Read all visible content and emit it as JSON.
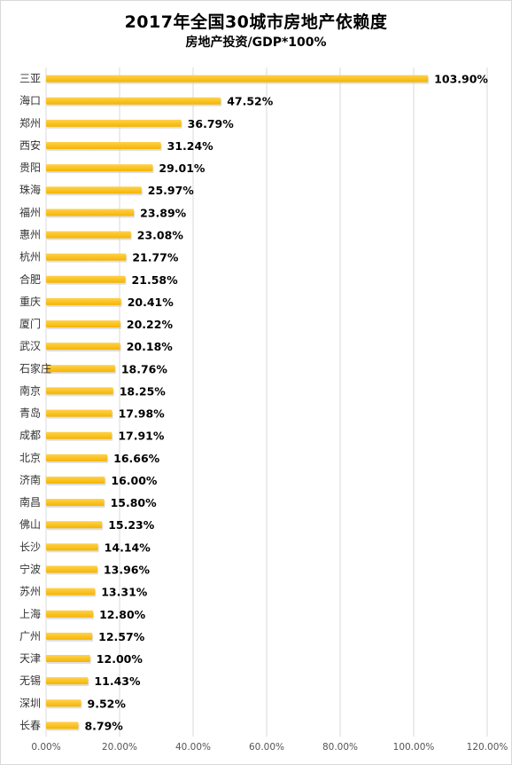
{
  "chart_data": {
    "type": "bar",
    "orientation": "horizontal",
    "title": "2017年全国30城市房地产依赖度",
    "subtitle": "房地产投资/GDP*100%",
    "categories": [
      "三亚",
      "海口",
      "郑州",
      "西安",
      "贵阳",
      "珠海",
      "福州",
      "惠州",
      "杭州",
      "合肥",
      "重庆",
      "厦门",
      "武汉",
      "石家庄",
      "南京",
      "青岛",
      "成都",
      "北京",
      "济南",
      "南昌",
      "佛山",
      "长沙",
      "宁波",
      "苏州",
      "上海",
      "广州",
      "天津",
      "无锡",
      "深圳",
      "长春"
    ],
    "values": [
      103.9,
      47.52,
      36.79,
      31.24,
      29.01,
      25.97,
      23.89,
      23.08,
      21.77,
      21.58,
      20.41,
      20.22,
      20.18,
      18.76,
      18.25,
      17.98,
      17.91,
      16.66,
      16.0,
      15.8,
      15.23,
      14.14,
      13.96,
      13.31,
      12.8,
      12.57,
      12.0,
      11.43,
      9.52,
      8.79
    ],
    "value_labels": [
      "103.90%",
      "47.52%",
      "36.79%",
      "31.24%",
      "29.01%",
      "25.97%",
      "23.89%",
      "23.08%",
      "21.77%",
      "21.58%",
      "20.41%",
      "20.22%",
      "20.18%",
      "18.76%",
      "18.25%",
      "17.98%",
      "17.91%",
      "16.66%",
      "16.00%",
      "15.80%",
      "15.23%",
      "14.14%",
      "13.96%",
      "13.31%",
      "12.80%",
      "12.57%",
      "12.00%",
      "11.43%",
      "9.52%",
      "8.79%"
    ],
    "xlim": [
      0,
      120
    ],
    "x_ticks": [
      0,
      20,
      40,
      60,
      80,
      100,
      120
    ],
    "x_tick_labels": [
      "0.00%",
      "20.00%",
      "40.00%",
      "60.00%",
      "80.00%",
      "100.00%",
      "120.00%"
    ],
    "grid": true,
    "bar_color": "#ffc000",
    "gridline_color": "#d9d9d9"
  }
}
